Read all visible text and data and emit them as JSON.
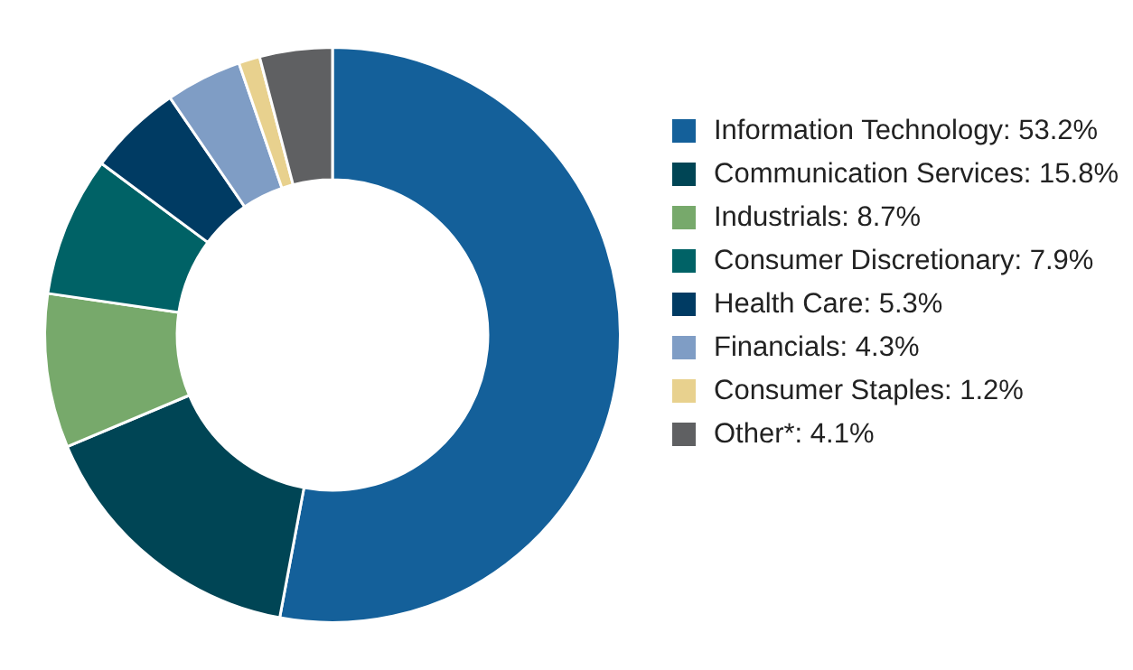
{
  "chart_data": {
    "type": "donut",
    "categories": [
      "Information Technology",
      "Communication Services",
      "Industrials",
      "Consumer Discretionary",
      "Health Care",
      "Financials",
      "Consumer Staples",
      "Other*"
    ],
    "values": [
      53.2,
      15.8,
      8.7,
      7.9,
      5.3,
      4.3,
      1.2,
      4.1
    ],
    "value_labels": [
      "53.2%",
      "15.8%",
      "8.7%",
      "7.9%",
      "5.3%",
      "4.3%",
      "1.2%",
      "4.1%"
    ],
    "colors": [
      "#14609a",
      "#004555",
      "#77a96b",
      "#006266",
      "#003b63",
      "#7f9dc5",
      "#e8d18e",
      "#5f6062"
    ],
    "legend": "right"
  }
}
